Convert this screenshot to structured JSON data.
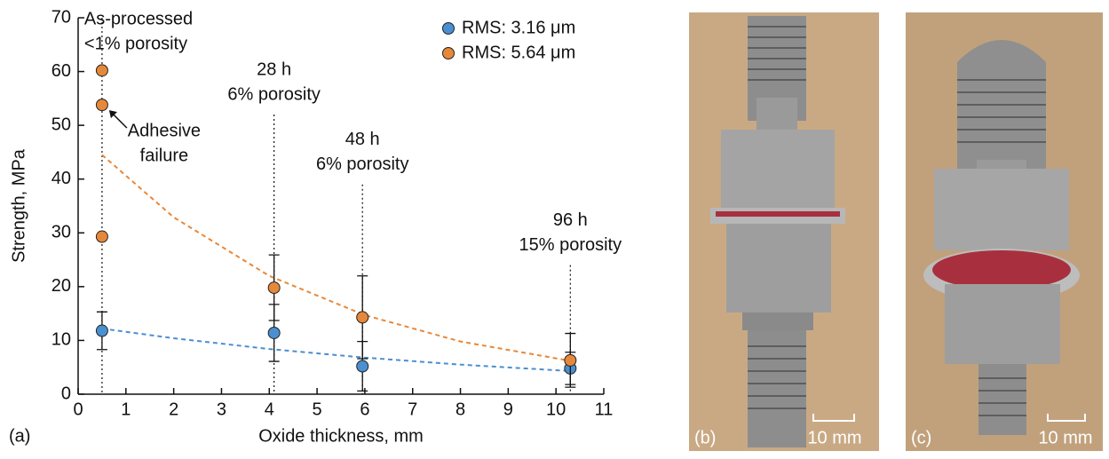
{
  "chart_data": {
    "type": "scatter",
    "x_label": "Oxide thickness, mm",
    "y_label": "Strength, MPa",
    "panel_label": "(a)",
    "xlim": [
      0,
      11
    ],
    "xticks": [
      0,
      1,
      2,
      3,
      4,
      5,
      6,
      7,
      8,
      9,
      10,
      11
    ],
    "ylim": [
      0,
      70
    ],
    "yticks": [
      0,
      10,
      20,
      30,
      40,
      50,
      60,
      70
    ],
    "legend": "upper right",
    "series": [
      {
        "name": "RMS: 3.16 μm",
        "color": "#4a8fd0",
        "x": [
          0.5,
          4.1,
          5.95,
          10.3
        ],
        "values": [
          11.8,
          11.4,
          5.2,
          4.8
        ],
        "errors": [
          3.5,
          5.3,
          4.6,
          3
        ]
      },
      {
        "name": "RMS: 5.64 μm",
        "color": "#e6883a",
        "x": [
          0.5,
          0.5,
          0.5,
          4.1,
          5.95,
          10.3
        ],
        "values": [
          60.2,
          53.8,
          29.3,
          19.8,
          14.3,
          6.3
        ],
        "errors": [
          null,
          null,
          null,
          6.1,
          7.7,
          5
        ]
      }
    ],
    "fits": [
      {
        "color": "#4a8fd0",
        "x": [
          0.5,
          2,
          4,
          6,
          8,
          10.3
        ],
        "values": [
          12.2,
          10.4,
          8.4,
          6.8,
          5.5,
          4.3
        ]
      },
      {
        "color": "#e6883a",
        "x": [
          0.5,
          2,
          4,
          6,
          8,
          10.3
        ],
        "values": [
          44.5,
          32.9,
          22.0,
          14.7,
          9.8,
          6.2
        ]
      }
    ],
    "annotations": [
      {
        "x": 0.5,
        "top": 70,
        "text": [
          "As-processed",
          "<1% porosity"
        ]
      },
      {
        "x": 4.1,
        "top": 52,
        "text": [
          "28 h",
          "6% porosity"
        ]
      },
      {
        "x": 5.95,
        "top": 39,
        "text": [
          "48 h",
          "6% porosity"
        ]
      },
      {
        "x": 10.3,
        "top": 24,
        "text": [
          "96 h",
          "15% porosity"
        ]
      }
    ],
    "callout": {
      "text": [
        "Adhesive",
        "failure"
      ],
      "x": 0.5,
      "y": 53.8
    }
  },
  "panels": [
    {
      "label": "(b)",
      "scale": "10 mm"
    },
    {
      "label": "(c)",
      "scale": "10 mm"
    }
  ]
}
